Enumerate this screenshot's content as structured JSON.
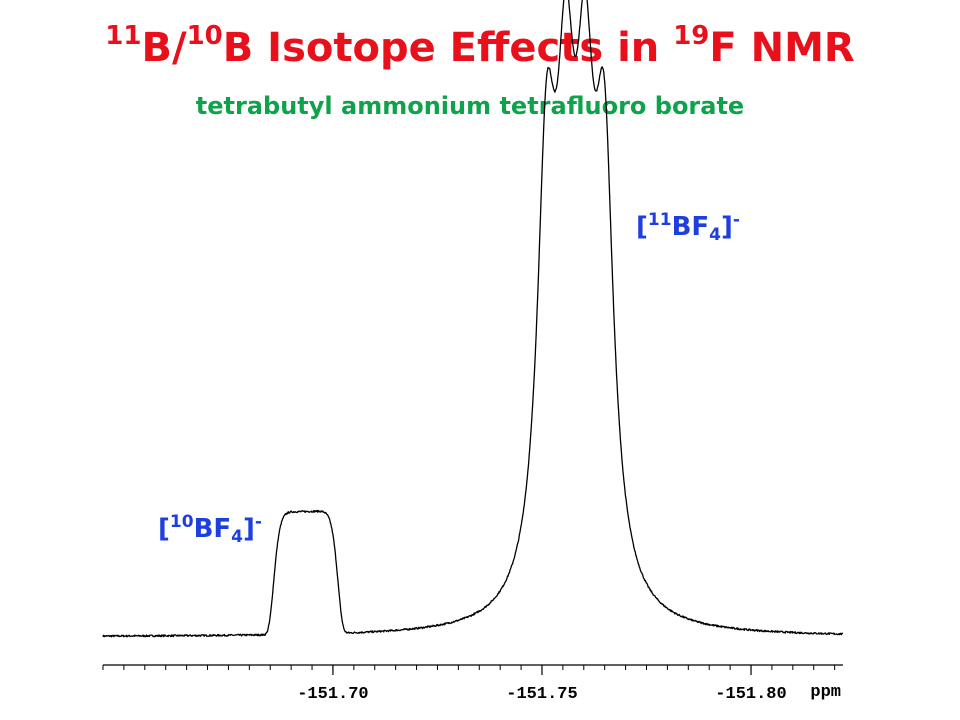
{
  "header": {
    "title_sup1": "11",
    "title_mid1": "B/",
    "title_sup2": "10",
    "title_mid2": "B Isotope Effects in ",
    "title_sup3": "19",
    "title_end": "F NMR",
    "subtitle": "tetrabutyl ammonium tetrafluoro borate"
  },
  "labels": {
    "b11": {
      "open": "[",
      "sup": "11",
      "main": "BF",
      "sub": "4",
      "close": "]",
      "charge": "-"
    },
    "b10": {
      "open": "[",
      "sup": "10",
      "main": "BF",
      "sub": "4",
      "close": "]",
      "charge": "-"
    }
  },
  "colors": {
    "title": "#e8101a",
    "subtitle": "#0ea24b",
    "labels": "#1d3fe0",
    "trace": "#000000"
  },
  "chart_data": {
    "type": "line",
    "title": "",
    "xlabel": "ppm",
    "ylabel": "",
    "x_reversed": true,
    "xlim": [
      -151.645,
      -151.822
    ],
    "ylim": [
      0,
      1
    ],
    "x_major_ticks": [
      -151.7,
      -151.75,
      -151.8
    ],
    "x_tick_labels": [
      "-151.70",
      "-151.75",
      "-151.80"
    ],
    "x_minor_step": 0.005,
    "grid": false,
    "legend": "none",
    "baseline_level": 0.0,
    "series": [
      {
        "peaks": [
          {
            "label": "[10BF4]-",
            "center": -151.6935,
            "height": 0.278,
            "width": 0.0075,
            "shape": "flat-top"
          },
          {
            "label": "[11BF4]-",
            "center": -151.7511,
            "height": 0.925,
            "width": 0.0027,
            "shape": "lorentzian"
          },
          {
            "label": "[11BF4]-",
            "center": -151.7557,
            "height": 0.925,
            "width": 0.0027,
            "shape": "lorentzian"
          },
          {
            "label": "[11BF4]-",
            "center": -151.7603,
            "height": 0.925,
            "width": 0.0027,
            "shape": "lorentzian"
          },
          {
            "label": "[11BF4]-",
            "center": -151.7649,
            "height": 0.925,
            "width": 0.0027,
            "shape": "lorentzian"
          }
        ]
      }
    ]
  }
}
